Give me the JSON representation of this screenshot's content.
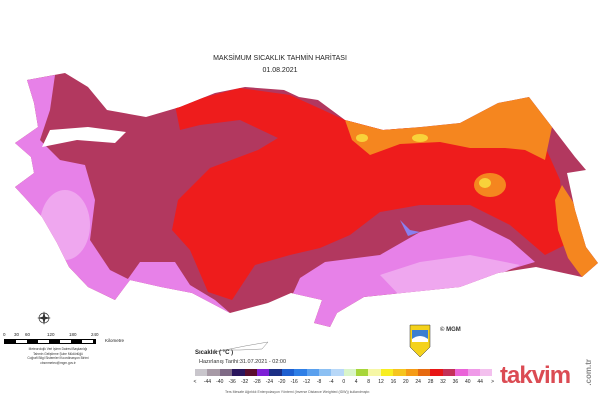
{
  "header": {
    "title": "MAKSİMUM SICAKLIK TAHMİN HARİTASI",
    "date": "01.08.2021"
  },
  "map_colors": {
    "sea": "#ffffff",
    "base": "#b2385f",
    "pink": "#e781e8",
    "light_pink": "#efa7ef",
    "red": "#ee1c1c",
    "orange": "#f5861f",
    "yellow": "#f8d23a"
  },
  "legend": {
    "title": "Sıcaklık ( °C )",
    "prepared": "Hazırlanış Tarihi:31.07.2021 - 02:00",
    "labels": [
      "<",
      "-44",
      "-40",
      "-36",
      "-32",
      "-28",
      "-24",
      "-20",
      "-16",
      "-12",
      "-8",
      "-4",
      "0",
      "4",
      "8",
      "12",
      "16",
      "20",
      "24",
      "28",
      "32",
      "36",
      "40",
      "44",
      ">"
    ],
    "colors": [
      "#c9c6cc",
      "#a79aa6",
      "#7f6a86",
      "#2a155c",
      "#5a0d2c",
      "#7e1fd6",
      "#1c2f85",
      "#1e5fd0",
      "#2f7fe6",
      "#5aa0ee",
      "#8cc0f3",
      "#b8d8f8",
      "#d9f5c9",
      "#a7d63a",
      "#f6f7a6",
      "#f8ee21",
      "#f6c51e",
      "#f59b16",
      "#e66a10",
      "#e81616",
      "#c43058",
      "#ea63d8",
      "#ef9ae8",
      "#f3c0ee"
    ],
    "method_note": "Ters Mesafe Ağırlıklı Enterpolasyon Yöntemi (Inverse Distance Weighted (IDW)) kullanılmıştır."
  },
  "scale": {
    "ticks": [
      "0",
      "30",
      "60",
      "120",
      "180",
      "240"
    ],
    "unit": "Kilometre"
  },
  "credits": [
    "Meteorolojik Veri İşlem Dairesi Başkanlığı",
    "Tahmin Geliştirme Şube Müdürlüğü",
    "Coğrafi Bilgi Sistemleri Koordinasyon Birimi",
    "cbsmmeteo@mgm.gov.tr"
  ],
  "copyright": "© MGM",
  "watermark": {
    "text": "takvim",
    "domain": ".com.tr"
  },
  "icons": {
    "compass": "compass-rose-icon",
    "logo": "mgm-logo-icon"
  }
}
